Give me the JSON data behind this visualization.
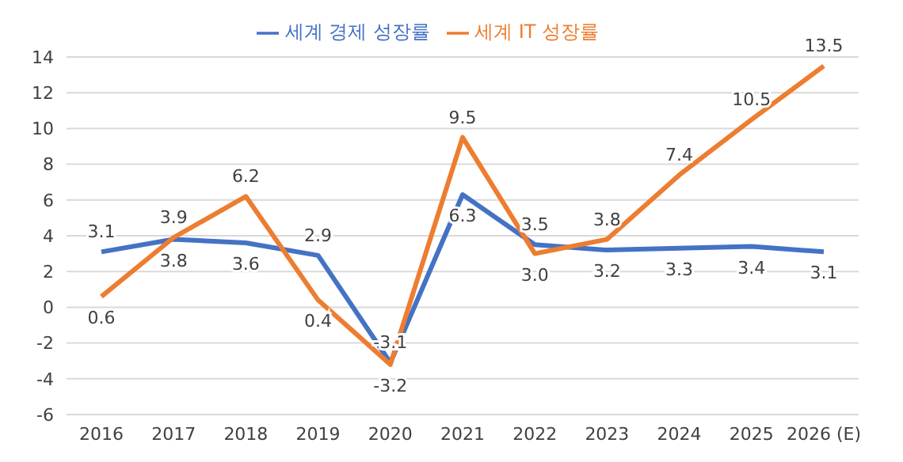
{
  "chart_data": {
    "type": "line",
    "categories": [
      "2016",
      "2017",
      "2018",
      "2019",
      "2020",
      "2021",
      "2022",
      "2023",
      "2024",
      "2025",
      "2026 (E)"
    ],
    "series": [
      {
        "name": "세계 경제 성장률",
        "color": "#4472c4",
        "values": [
          3.1,
          3.8,
          3.6,
          2.9,
          -3.1,
          6.3,
          3.5,
          3.2,
          3.3,
          3.4,
          3.1
        ],
        "value_labels": [
          "3.1",
          "3.8",
          "3.6",
          "2.9",
          "-3.1",
          "6.3",
          "3.5",
          "3.2",
          "3.3",
          "3.4",
          "3.1"
        ]
      },
      {
        "name": "세계 IT 성장률",
        "color": "#ed7d31",
        "values": [
          0.6,
          3.9,
          6.2,
          0.4,
          -3.2,
          9.5,
          3.0,
          3.8,
          7.4,
          10.5,
          13.5
        ],
        "value_labels": [
          "0.6",
          "3.9",
          "6.2",
          "0.4",
          "-3.2",
          "9.5",
          "3.0",
          "3.8",
          "7.4",
          "10.5",
          "13.5"
        ]
      }
    ],
    "ylim": [
      -6,
      14
    ],
    "yticks": [
      -6,
      -4,
      -2,
      0,
      2,
      4,
      6,
      8,
      10,
      12,
      14
    ],
    "grid": "y",
    "legend": "top",
    "marker": "none",
    "line_style": "solid"
  }
}
